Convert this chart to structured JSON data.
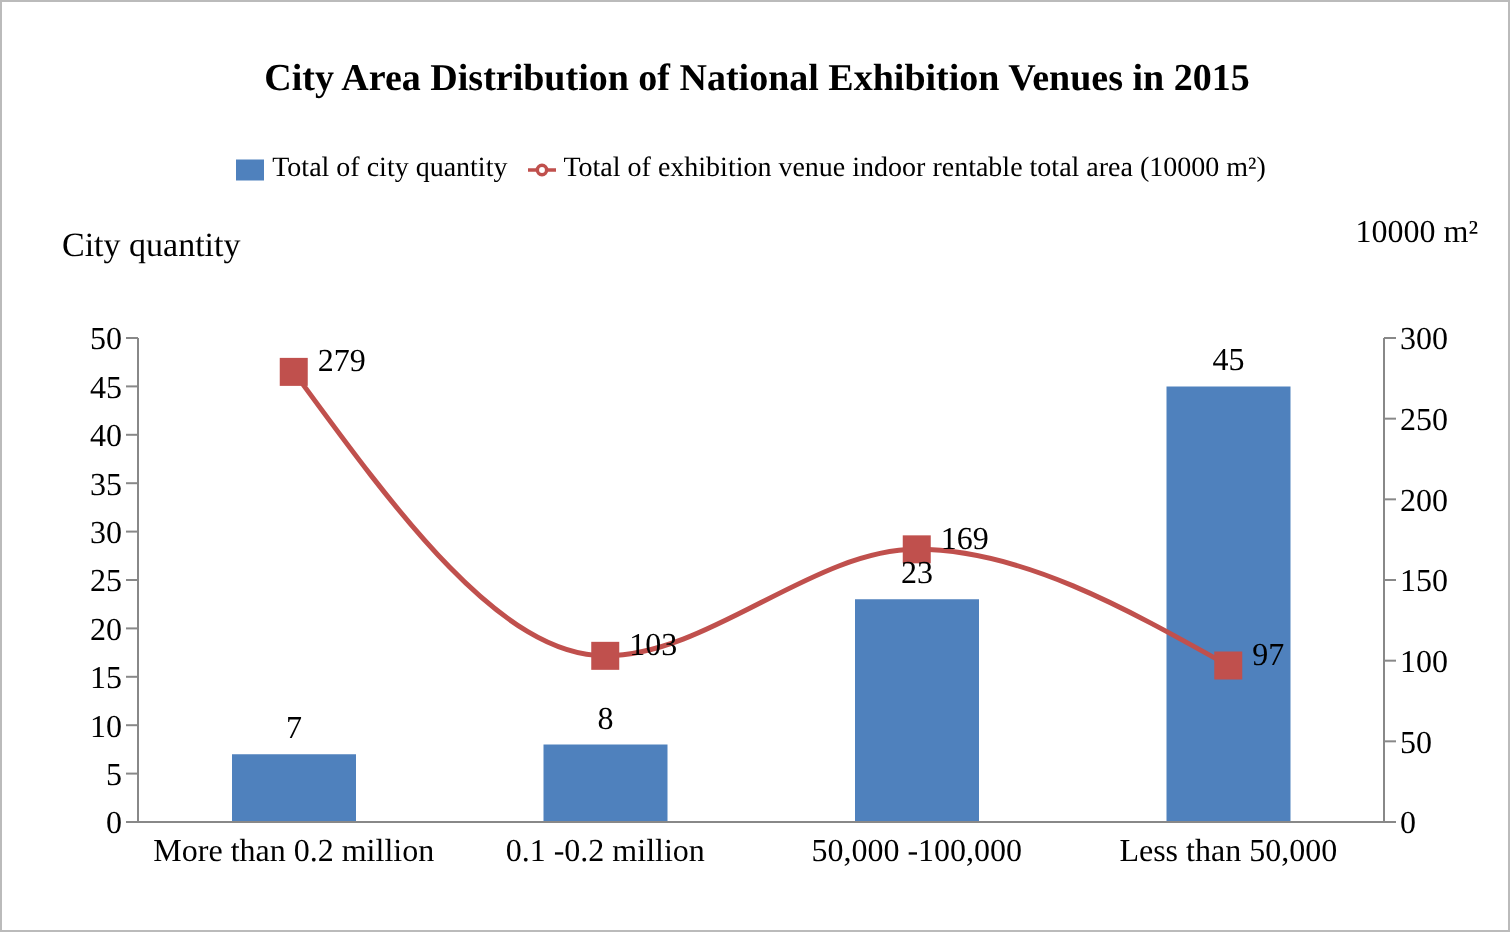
{
  "chart_data": {
    "type": "bar",
    "title": "City Area Distribution of National Exhibition Venues in 2015",
    "ylabel": "City quantity",
    "y2label": "10000 m²",
    "categories": [
      "More than 0.2 million",
      "0.1 -0.2 million",
      "50,000 -100,000",
      "Less than 50,000"
    ],
    "series": [
      {
        "name": "Total of city quantity",
        "color": "#4f81bd",
        "values": [
          7,
          8,
          23,
          45
        ]
      },
      {
        "name": "Total of exhibition venue indoor rentable total area (10000 m²)",
        "type": "line",
        "axis": "y2",
        "color": "#c0504d",
        "values": [
          279,
          103,
          169,
          97
        ]
      }
    ],
    "ylim": [
      0,
      50
    ],
    "yticks": [
      0,
      5,
      10,
      15,
      20,
      25,
      30,
      35,
      40,
      45,
      50
    ],
    "y2lim": [
      0,
      300
    ],
    "y2ticks": [
      0,
      50,
      100,
      150,
      200,
      250,
      300
    ],
    "data_labels": true,
    "legend": "top",
    "marker": "square"
  }
}
